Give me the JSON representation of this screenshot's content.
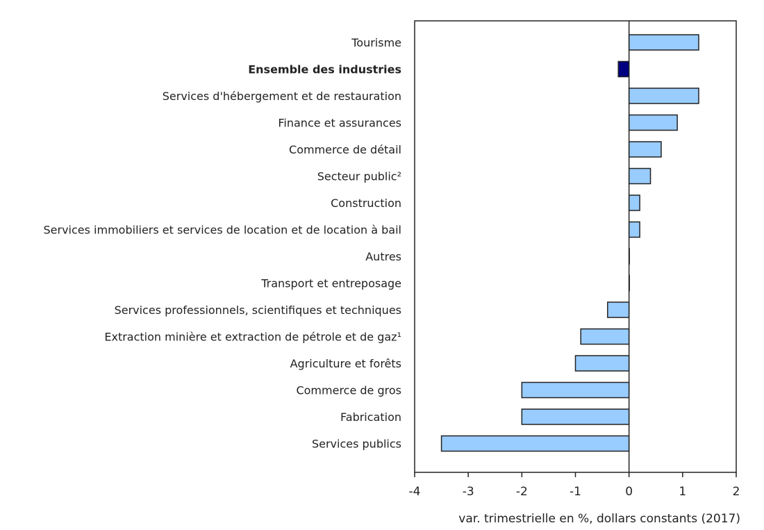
{
  "chart_data": {
    "type": "bar",
    "orientation": "horizontal",
    "categories": [
      "Tourisme",
      "Ensemble des industries",
      "Services d'hébergement et de restauration",
      "Finance et assurances",
      "Commerce de détail",
      "Secteur public²",
      "Construction",
      "Services immobiliers et services de location et de location à bail",
      "Autres",
      "Transport et entreposage",
      "Services professionnels, scientifiques et techniques",
      "Extraction minière et extraction de pétrole et de gaz¹",
      "Agriculture et forêts",
      "Commerce de gros",
      "Fabrication",
      "Services publics"
    ],
    "values": [
      1.3,
      -0.2,
      1.3,
      0.9,
      0.6,
      0.4,
      0.2,
      0.2,
      0.0,
      0.0,
      -0.4,
      -0.9,
      -1.0,
      -2.0,
      -2.0,
      -3.5
    ],
    "highlight_category": "Ensemble des industries",
    "xlabel": "var. trimestrielle en %, dollars constants (2017)",
    "xlim": [
      -4,
      2
    ],
    "xticks": [
      "-4",
      "-3",
      "-2",
      "-1",
      "0",
      "1",
      "2"
    ],
    "grid": false,
    "colors": {
      "bar": "#99CCFF",
      "highlight": "#000080",
      "outline": "#222222"
    }
  }
}
